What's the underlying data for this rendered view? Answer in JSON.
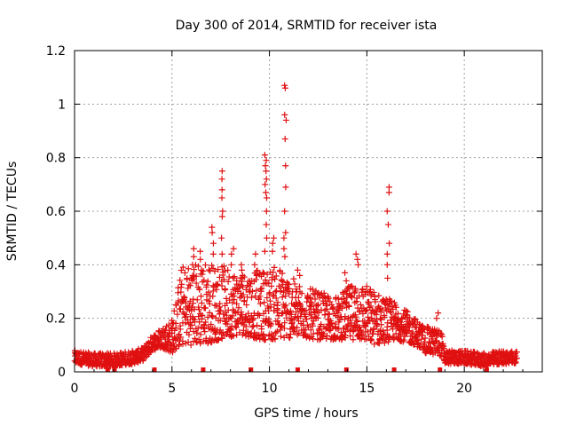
{
  "chart_data": {
    "type": "scatter",
    "title": "Day 300 of 2014, SRMTID for receiver ista",
    "xlabel": "GPS time / hours",
    "ylabel": "SRMTID / TECUs",
    "xlim": [
      0,
      24
    ],
    "ylim": [
      0,
      1.2
    ],
    "xticks": [
      0,
      5,
      10,
      15,
      20
    ],
    "xtick_labels": [
      "0",
      "5",
      "10",
      "15",
      "20"
    ],
    "yticks": [
      0,
      0.2,
      0.4,
      0.6,
      0.8,
      1.0,
      1.2
    ],
    "ytick_labels": [
      "0",
      "0.2",
      "0.4",
      "0.6",
      "0.8",
      "1",
      "1.2"
    ],
    "grid": true,
    "marker": "+",
    "series_color": "#e01010",
    "baseline_flags_x": [
      1.7,
      2.05,
      4.1,
      6.6,
      9.05,
      11.45,
      13.95,
      16.4,
      18.75,
      21.15
    ],
    "envelope": [
      [
        0.0,
        0.03,
        0.08
      ],
      [
        1.0,
        0.02,
        0.07
      ],
      [
        2.0,
        0.02,
        0.07
      ],
      [
        3.0,
        0.03,
        0.08
      ],
      [
        3.5,
        0.04,
        0.09
      ],
      [
        4.0,
        0.08,
        0.14
      ],
      [
        4.5,
        0.09,
        0.17
      ],
      [
        5.0,
        0.07,
        0.2
      ],
      [
        5.5,
        0.1,
        0.4
      ],
      [
        6.5,
        0.1,
        0.42
      ],
      [
        7.5,
        0.12,
        0.4
      ],
      [
        8.5,
        0.14,
        0.38
      ],
      [
        9.5,
        0.12,
        0.38
      ],
      [
        10.5,
        0.12,
        0.4
      ],
      [
        11.5,
        0.13,
        0.33
      ],
      [
        12.5,
        0.12,
        0.3
      ],
      [
        13.5,
        0.12,
        0.28
      ],
      [
        14.5,
        0.12,
        0.35
      ],
      [
        15.5,
        0.1,
        0.3
      ],
      [
        16.5,
        0.12,
        0.26
      ],
      [
        17.5,
        0.1,
        0.2
      ],
      [
        18.0,
        0.07,
        0.17
      ],
      [
        18.8,
        0.06,
        0.16
      ],
      [
        19.0,
        0.03,
        0.08
      ],
      [
        20.0,
        0.03,
        0.08
      ],
      [
        21.0,
        0.02,
        0.07
      ],
      [
        22.0,
        0.03,
        0.08
      ],
      [
        22.7,
        0.03,
        0.08
      ]
    ],
    "density_points_per_hour": 85,
    "spikes": [
      {
        "x": 6.1,
        "values": [
          0.43,
          0.46,
          0.4,
          0.36
        ]
      },
      {
        "x": 6.5,
        "values": [
          0.45,
          0.42,
          0.38
        ]
      },
      {
        "x": 7.1,
        "values": [
          0.52,
          0.54,
          0.48,
          0.44
        ]
      },
      {
        "x": 7.6,
        "values": [
          0.75,
          0.72,
          0.68,
          0.65,
          0.6,
          0.58,
          0.5,
          0.44
        ]
      },
      {
        "x": 8.1,
        "values": [
          0.46,
          0.44,
          0.4
        ]
      },
      {
        "x": 8.6,
        "values": [
          0.4,
          0.38,
          0.36
        ]
      },
      {
        "x": 9.3,
        "values": [
          0.44,
          0.4,
          0.36
        ]
      },
      {
        "x": 9.8,
        "values": [
          0.81,
          0.79,
          0.77,
          0.75,
          0.72,
          0.7,
          0.67,
          0.65,
          0.6,
          0.55,
          0.5,
          0.45
        ]
      },
      {
        "x": 10.2,
        "values": [
          0.5,
          0.48,
          0.45
        ]
      },
      {
        "x": 10.8,
        "values": [
          1.07,
          1.06,
          0.96,
          0.94,
          0.87,
          0.77,
          0.69,
          0.6,
          0.52,
          0.5,
          0.46,
          0.43
        ]
      },
      {
        "x": 11.5,
        "values": [
          0.38,
          0.36
        ]
      },
      {
        "x": 13.9,
        "values": [
          0.37,
          0.34
        ]
      },
      {
        "x": 14.5,
        "values": [
          0.44,
          0.42,
          0.4
        ]
      },
      {
        "x": 16.1,
        "values": [
          0.69,
          0.67,
          0.6,
          0.55,
          0.48,
          0.44,
          0.4,
          0.35
        ]
      },
      {
        "x": 18.6,
        "values": [
          0.22,
          0.2
        ]
      }
    ]
  }
}
